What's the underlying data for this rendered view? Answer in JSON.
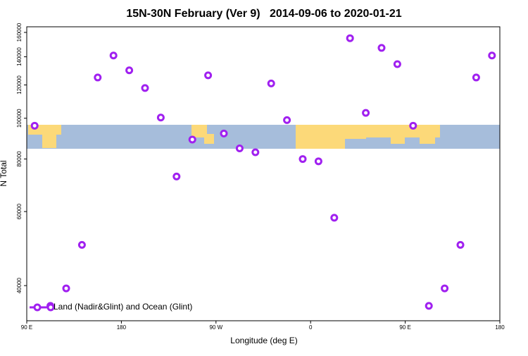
{
  "chart_data": {
    "type": "scatter",
    "title": "15N-30N February (Ver 9)   2014-09-06 to 2020-01-21",
    "x_label": "Longitude (deg E)",
    "y_label": "N Total",
    "xlim": [
      90,
      540
    ],
    "ylim": [
      33000,
      165000
    ],
    "ylog": true,
    "xticks": [
      {
        "value": 90,
        "label": "90 E"
      },
      180,
      {
        "value": 270,
        "label": "90 W"
      },
      {
        "value": 360,
        "label": "0"
      },
      {
        "value": 450,
        "label": "90 E"
      },
      {
        "value": 540,
        "label": "180"
      }
    ],
    "yticks": [
      40000,
      60000,
      80000,
      100000,
      120000,
      140000,
      160000
    ],
    "legend": "bottom-left",
    "series": [
      {
        "name": "Land (Nadir&Glint) and Ocean (Glint)",
        "color": "#a020f0",
        "x": [
          97.5,
          112.5,
          127.5,
          142.5,
          157.5,
          172.5,
          187.5,
          202.5,
          217.5,
          232.5,
          247.5,
          262.5,
          277.5,
          292.5,
          307.5,
          322.5,
          337.5,
          352.5,
          367.5,
          382.5,
          397.5,
          412.5,
          427.5,
          442.5,
          457.5,
          472.5,
          487.5,
          502.5,
          517.5,
          532.5
        ],
        "values": [
          96000,
          35800,
          39400,
          50000,
          125000,
          141000,
          130000,
          118000,
          100400,
          72700,
          89000,
          126500,
          92000,
          84800,
          83000,
          121000,
          99000,
          80000,
          79000,
          58000,
          155000,
          103000,
          147000,
          134500,
          96000,
          35800,
          39400,
          50000,
          125000,
          141000
        ]
      }
    ]
  }
}
